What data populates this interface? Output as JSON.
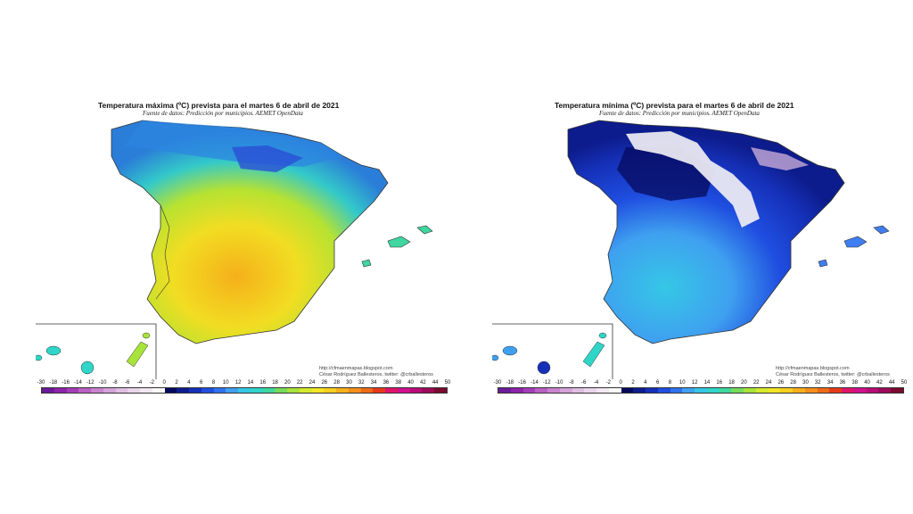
{
  "panels": [
    {
      "title": "Temperatura máxima (ºC) prevista para el martes 6 de abril de 2021",
      "subtitle": "Fuente de datos: Predicción por municipios. AEMET OpenData",
      "credit_url": "http://cfmaenmapas.blogspot.com",
      "credit_author": "César Rodríguez Ballesteros, twitter: @crballesteros",
      "variable": "max"
    },
    {
      "title": "Temperatura mínima (ºC) prevista para el martes 6 de abril de 2021",
      "subtitle": "Fuente de datos: Predicción por municipios. AEMET OpenData",
      "credit_url": "http://cfmaenmapas.blogspot.com",
      "credit_author": "César Rodríguez Ballesteros, twitter: @crballesteros",
      "variable": "min"
    }
  ],
  "legend": {
    "ticks": [
      "-30",
      "-18",
      "-16",
      "-14",
      "-12",
      "-10",
      "-8",
      "-6",
      "-4",
      "-2",
      "0",
      "2",
      "4",
      "6",
      "8",
      "10",
      "12",
      "14",
      "16",
      "18",
      "20",
      "22",
      "24",
      "26",
      "28",
      "30",
      "32",
      "34",
      "36",
      "38",
      "40",
      "42",
      "44",
      "50"
    ],
    "colors": [
      "#6a1b9a",
      "#8e24aa",
      "#a53db8",
      "#b860c4",
      "#c983cf",
      "#d6a3d9",
      "#e1bfe3",
      "#ead6ec",
      "#f2e8f3",
      "#fafafa",
      "#050a5c",
      "#0d1c8c",
      "#1530b8",
      "#1f4ee0",
      "#2e72ee",
      "#3fa0f0",
      "#35c7e6",
      "#2fd6c8",
      "#3ed89e",
      "#74dc5a",
      "#a8e33a",
      "#d6ea2a",
      "#f2e524",
      "#f7cf1e",
      "#f6b01a",
      "#f38f18",
      "#ef6a16",
      "#e63a1a",
      "#e0136a",
      "#d0108e",
      "#b80c78",
      "#9b0a5a",
      "#7a0a2e"
    ]
  }
}
